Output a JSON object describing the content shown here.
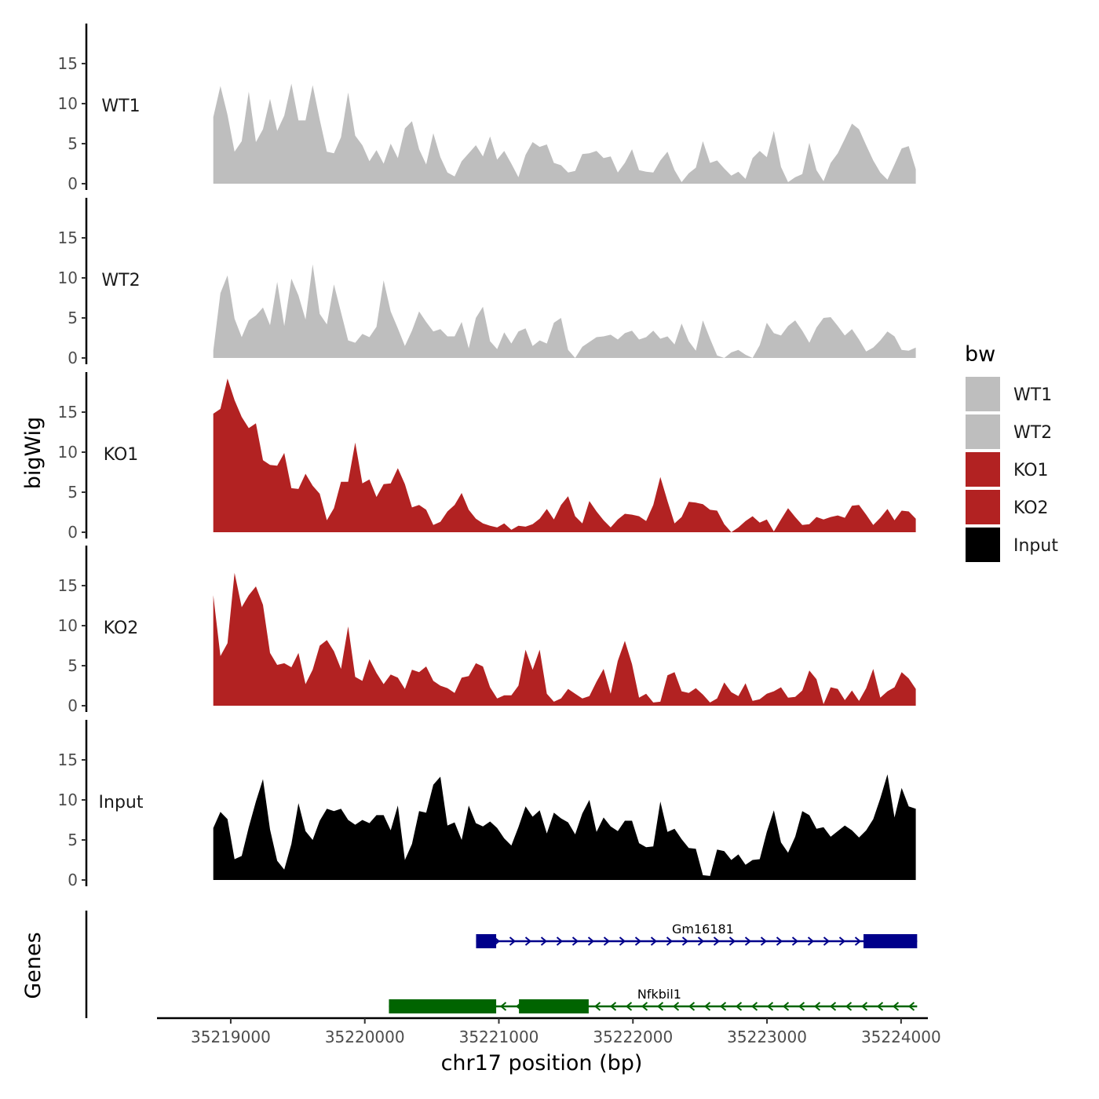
{
  "chart_data": {
    "type": "area",
    "xlabel": "chr17 position (bp)",
    "ylabel": "bigWig",
    "genes_label": "Genes",
    "xlim": [
      35218450,
      35224200
    ],
    "ylim": [
      0,
      20
    ],
    "data_xrange": [
      35218870,
      35224110
    ],
    "yticks": [
      0,
      5,
      10,
      15
    ],
    "xticks": [
      35219000,
      35220000,
      35221000,
      35222000,
      35223000,
      35224000
    ],
    "xtick_labels": [
      "35219000",
      "35220000",
      "35221000",
      "35222000",
      "35223000",
      "35224000"
    ],
    "legend_title": "bw",
    "colors": {
      "WT": "#bebebe",
      "KO": "#b22222",
      "Input": "#000000"
    },
    "series": [
      {
        "name": "WT1",
        "color": "#bebebe",
        "values": [
          8.3,
          12.2,
          8.6,
          4.0,
          5.3,
          11.5,
          5.2,
          6.8,
          10.6,
          6.6,
          8.5,
          12.5,
          7.9,
          7.9,
          12.3,
          8.0,
          4.0,
          3.8,
          5.8,
          11.4,
          6.0,
          4.8,
          2.8,
          4.2,
          2.5,
          5.0,
          3.2,
          6.9,
          7.8,
          4.3,
          2.4,
          6.3,
          3.3,
          1.4,
          0.9,
          2.8,
          3.8,
          4.8,
          3.4,
          5.9,
          3.0,
          4.1,
          2.5,
          0.8,
          3.6,
          5.2,
          4.6,
          4.9,
          2.6,
          2.3,
          1.4,
          1.6,
          3.7,
          3.8,
          4.1,
          3.2,
          3.4,
          1.4,
          2.6,
          4.3,
          1.7,
          1.5,
          1.4,
          2.9,
          4.0,
          1.7,
          0.2,
          1.3,
          2.0,
          5.3,
          2.6,
          2.9,
          1.9,
          1.0,
          1.5,
          0.6,
          3.2,
          4.1,
          3.3,
          6.6,
          2.1,
          0.2,
          0.8,
          1.2,
          5.1,
          1.7,
          0.3,
          2.6,
          3.8,
          5.6,
          7.5,
          6.8,
          4.8,
          2.9,
          1.4,
          0.5,
          2.4,
          4.4,
          4.7,
          1.8
        ]
      },
      {
        "name": "WT2",
        "color": "#bebebe",
        "values": [
          0.9,
          8.1,
          10.3,
          4.9,
          2.6,
          4.7,
          5.3,
          6.3,
          4.1,
          9.5,
          4.0,
          9.9,
          7.8,
          4.8,
          11.7,
          5.5,
          4.2,
          9.2,
          5.7,
          2.2,
          1.9,
          3.0,
          2.6,
          3.9,
          9.7,
          5.8,
          3.7,
          1.5,
          3.4,
          5.8,
          4.5,
          3.3,
          3.6,
          2.7,
          2.7,
          4.5,
          1.2,
          5.0,
          6.4,
          2.1,
          1.1,
          3.2,
          1.8,
          3.3,
          3.7,
          1.5,
          2.2,
          1.8,
          4.4,
          5.0,
          1.0,
          0.0,
          1.4,
          2.0,
          2.6,
          2.7,
          2.9,
          2.3,
          3.1,
          3.4,
          2.3,
          2.6,
          3.4,
          2.4,
          2.7,
          1.7,
          4.3,
          2.1,
          0.9,
          4.7,
          2.4,
          0.3,
          0.0,
          0.7,
          1.0,
          0.4,
          0.0,
          1.6,
          4.4,
          3.1,
          2.8,
          4.0,
          4.7,
          3.4,
          1.9,
          3.8,
          5.0,
          5.1,
          4.0,
          2.8,
          3.6,
          2.3,
          0.8,
          1.3,
          2.2,
          3.3,
          2.7,
          1.0,
          0.9,
          1.3
        ]
      },
      {
        "name": "KO1",
        "color": "#b22222",
        "values": [
          14.8,
          15.4,
          19.2,
          16.5,
          14.4,
          13.0,
          13.6,
          9.0,
          8.4,
          8.3,
          9.9,
          5.5,
          5.4,
          7.3,
          5.8,
          4.8,
          1.5,
          3.0,
          6.3,
          6.3,
          11.2,
          6.1,
          6.6,
          4.4,
          6.0,
          6.1,
          8.0,
          6.0,
          3.1,
          3.4,
          2.8,
          0.9,
          1.3,
          2.6,
          3.4,
          4.9,
          2.8,
          1.7,
          1.1,
          0.8,
          0.6,
          1.1,
          0.3,
          0.8,
          0.7,
          1.0,
          1.7,
          2.9,
          1.6,
          3.4,
          4.5,
          2.0,
          1.1,
          3.9,
          2.6,
          1.5,
          0.6,
          1.6,
          2.3,
          2.2,
          2.0,
          1.4,
          3.4,
          6.9,
          3.9,
          1.1,
          1.9,
          3.8,
          3.7,
          3.5,
          2.8,
          2.7,
          1.0,
          0.0,
          0.6,
          1.4,
          2.0,
          1.2,
          1.6,
          0.1,
          1.6,
          3.0,
          1.9,
          0.9,
          1.0,
          1.9,
          1.6,
          1.9,
          2.1,
          1.8,
          3.3,
          3.4,
          2.2,
          0.9,
          1.8,
          2.9,
          1.5,
          2.7,
          2.6,
          1.7
        ]
      },
      {
        "name": "KO2",
        "color": "#b22222",
        "values": [
          13.8,
          6.2,
          7.8,
          16.6,
          12.3,
          13.8,
          14.9,
          12.6,
          6.6,
          5.1,
          5.3,
          4.8,
          6.6,
          2.7,
          4.5,
          7.5,
          8.2,
          6.8,
          4.6,
          9.9,
          3.6,
          3.1,
          5.8,
          4.1,
          2.7,
          3.9,
          3.5,
          2.1,
          4.5,
          4.2,
          4.9,
          3.1,
          2.5,
          2.2,
          1.6,
          3.5,
          3.7,
          5.3,
          4.9,
          2.3,
          0.9,
          1.3,
          1.3,
          2.5,
          7.0,
          4.5,
          7.0,
          1.5,
          0.5,
          0.9,
          2.1,
          1.5,
          0.9,
          1.2,
          3.0,
          4.6,
          1.5,
          5.6,
          8.1,
          5.2,
          1.0,
          1.5,
          0.4,
          0.5,
          3.8,
          4.2,
          1.8,
          1.6,
          2.2,
          1.4,
          0.4,
          0.9,
          2.9,
          1.7,
          1.2,
          2.8,
          0.6,
          0.8,
          1.5,
          1.8,
          2.3,
          1.0,
          1.1,
          1.9,
          4.4,
          3.3,
          0.2,
          2.3,
          2.1,
          0.7,
          1.9,
          0.6,
          2.2,
          4.6,
          1.0,
          1.8,
          2.3,
          4.2,
          3.4,
          2.1
        ]
      },
      {
        "name": "Input",
        "color": "#000000",
        "values": [
          6.5,
          8.5,
          7.6,
          2.6,
          3.0,
          6.6,
          9.8,
          12.6,
          6.3,
          2.4,
          1.3,
          4.5,
          9.6,
          6.1,
          5.0,
          7.4,
          8.9,
          8.6,
          8.9,
          7.5,
          6.9,
          7.5,
          7.1,
          8.1,
          8.1,
          6.2,
          9.3,
          2.5,
          4.5,
          8.6,
          8.4,
          11.9,
          12.9,
          6.8,
          7.2,
          5.0,
          9.3,
          7.1,
          6.7,
          7.3,
          6.5,
          5.2,
          4.3,
          6.6,
          9.2,
          7.9,
          8.7,
          5.8,
          8.4,
          7.7,
          7.2,
          5.7,
          8.3,
          10.0,
          6.0,
          7.8,
          6.7,
          6.1,
          7.4,
          7.4,
          4.6,
          4.1,
          4.2,
          9.8,
          6.0,
          6.4,
          5.1,
          4.0,
          3.9,
          0.6,
          0.5,
          3.8,
          3.6,
          2.5,
          3.2,
          1.9,
          2.5,
          2.6,
          6.0,
          8.7,
          4.7,
          3.4,
          5.4,
          8.6,
          8.1,
          6.4,
          6.6,
          5.4,
          6.1,
          6.8,
          6.2,
          5.3,
          6.2,
          7.6,
          10.2,
          13.2,
          7.8,
          11.5,
          9.2,
          8.9
        ]
      }
    ],
    "genes": [
      {
        "name": "Gm16181",
        "color": "#00008b",
        "strand": "+",
        "start": 35220830,
        "end": 35224120,
        "exons": [
          [
            35220830,
            35220980
          ],
          [
            35223720,
            35224120
          ]
        ]
      },
      {
        "name": "Nfkbil1",
        "color": "#006400",
        "strand": "-",
        "start": 35220180,
        "end": 35224120,
        "exons": [
          [
            35220180,
            35220980
          ],
          [
            35221150,
            35221670
          ]
        ]
      }
    ]
  }
}
